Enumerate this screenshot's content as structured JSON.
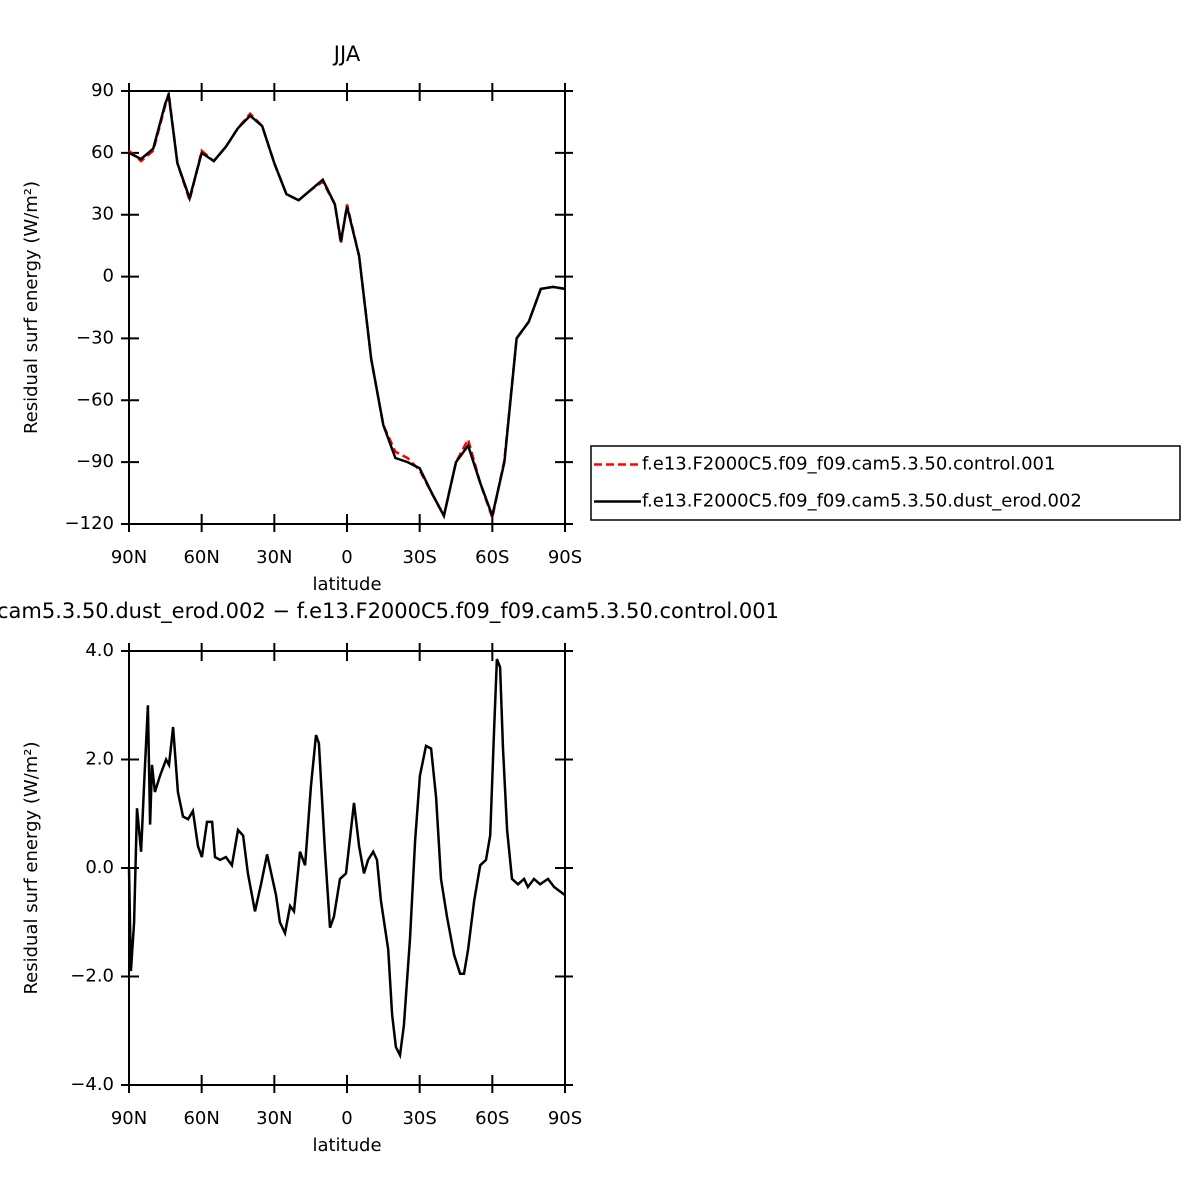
{
  "chart_data": [
    {
      "type": "line",
      "title": "JJA",
      "xlabel": "latitude",
      "ylabel": "Residual surf energy (W/m²)",
      "xlim": [
        90,
        -90
      ],
      "xticks": [
        {
          "value": 90,
          "label": "90N"
        },
        {
          "value": 60,
          "label": "60N"
        },
        {
          "value": 30,
          "label": "30N"
        },
        0,
        {
          "value": -30,
          "label": "30S"
        },
        {
          "value": -60,
          "label": "60S"
        },
        {
          "value": -90,
          "label": "90S"
        }
      ],
      "ylim": [
        -120,
        90
      ],
      "yticks": [
        {
          "value": -120,
          "label": "−120"
        },
        {
          "value": -90,
          "label": "−90"
        },
        {
          "value": -60,
          "label": "−60"
        },
        {
          "value": -30,
          "label": "−30"
        },
        0,
        30,
        60,
        90
      ],
      "legend": "right",
      "x": [
        90,
        85,
        80,
        75,
        73.6,
        70,
        65,
        60,
        55,
        50,
        45,
        40,
        35,
        30,
        25,
        20,
        15,
        10,
        5,
        2.5,
        0,
        -5,
        -10,
        -15,
        -20,
        -25,
        -30,
        -35,
        -40,
        -45,
        -50,
        -55,
        -60,
        -65,
        -70,
        -75,
        -80,
        -85,
        -90
      ],
      "series": [
        {
          "name": "f.e13.F2000C5.f09_f09.cam5.3.50.control.001",
          "color": "#ff0000",
          "dash": true,
          "values": [
            61,
            56,
            61,
            83,
            89,
            55,
            37,
            61,
            56,
            63,
            72,
            79,
            73,
            55,
            40,
            37,
            42,
            46,
            35,
            16,
            35,
            10,
            -40,
            -72,
            -85,
            -88,
            -94,
            -105,
            -116,
            -90,
            -79,
            -100,
            -117,
            -89,
            -30,
            -22,
            -6,
            -5,
            -6
          ]
        },
        {
          "name": "f.e13.F2000C5.f09_f09.cam5.3.50.dust_erod.002",
          "color": "#000000",
          "dash": false,
          "values": [
            60,
            57,
            62,
            84,
            88,
            55,
            38,
            60,
            56,
            63,
            72,
            78,
            73,
            55,
            40,
            37,
            42,
            47,
            35,
            17,
            34,
            10,
            -40,
            -72,
            -88,
            -90,
            -93,
            -105,
            -116,
            -90,
            -82,
            -100,
            -116,
            -90,
            -30,
            -22,
            -6,
            -5,
            -6
          ]
        }
      ]
    },
    {
      "type": "line",
      "title": "cam5.3.50.dust_erod.002 − f.e13.F2000C5.f09_f09.cam5.3.50.control.001",
      "xlabel": "latitude",
      "ylabel": "Residual surf energy (W/m²)",
      "xlim": [
        90,
        -90
      ],
      "xticks": [
        {
          "value": 90,
          "label": "90N"
        },
        {
          "value": 60,
          "label": "60N"
        },
        {
          "value": 30,
          "label": "30N"
        },
        0,
        {
          "value": -30,
          "label": "30S"
        },
        {
          "value": -60,
          "label": "60S"
        },
        {
          "value": -90,
          "label": "90S"
        }
      ],
      "ylim": [
        -4,
        4
      ],
      "yticks": [
        {
          "value": -4,
          "label": "−4.0"
        },
        {
          "value": -2,
          "label": "−2.0"
        },
        {
          "value": 0,
          "label": "0.0"
        },
        {
          "value": 2,
          "label": "2.0"
        },
        {
          "value": 4,
          "label": "4.0"
        }
      ],
      "x": [
        90,
        89.2,
        87.9,
        86.7,
        85,
        83.8,
        82.2,
        81.3,
        80.5,
        79.3,
        77.2,
        74.7,
        73.5,
        71.8,
        69.8,
        67.7,
        65.6,
        63.6,
        61.5,
        59.9,
        57.8,
        55.7,
        54.5,
        52.4,
        50,
        47.5,
        45,
        42.9,
        40.9,
        38,
        35.5,
        33,
        29.3,
        27.7,
        25.6,
        23.5,
        21.9,
        19.4,
        17.3,
        14.9,
        12.8,
        11.6,
        9.1,
        7,
        5.4,
        2.9,
        0.4,
        -2.9,
        -5,
        -7,
        -8.7,
        -10.8,
        -12.4,
        -14,
        -17,
        -18.6,
        -20.2,
        -21.9,
        -23.5,
        -26,
        -28.1,
        -30.1,
        -32.6,
        -34.7,
        -36.8,
        -38.8,
        -41.3,
        -44.2,
        -46.7,
        -48.3,
        -50,
        -52.5,
        -55,
        -57.4,
        -59.1,
        -60.7,
        -61.9,
        -63.2,
        -64.4,
        -66.1,
        -68.1,
        -70.6,
        -73.1,
        -74.7,
        -77.2,
        -79.7,
        -83,
        -85.5,
        -90
      ],
      "color": "#000000",
      "values": [
        0,
        -1.9,
        -1,
        1.1,
        0.3,
        1.5,
        3,
        0.8,
        1.9,
        1.4,
        1.7,
        2,
        1.9,
        2.6,
        1.4,
        0.95,
        0.9,
        1.05,
        0.4,
        0.2,
        0.85,
        0.85,
        0.2,
        0.15,
        0.2,
        0.05,
        0.7,
        0.6,
        -0.1,
        -0.8,
        -0.3,
        0.25,
        -0.5,
        -1,
        -1.2,
        -0.7,
        -0.8,
        0.3,
        0.05,
        1.5,
        2.45,
        2.3,
        0.3,
        -1.1,
        -0.9,
        -0.2,
        -0.1,
        1.2,
        0.4,
        -0.1,
        0.15,
        0.3,
        0.15,
        -0.6,
        -1.5,
        -2.7,
        -3.3,
        -3.45,
        -2.9,
        -1.3,
        0.5,
        1.7,
        2.25,
        2.2,
        1.3,
        -0.2,
        -0.9,
        -1.6,
        -1.95,
        -1.95,
        -1.5,
        -0.6,
        0.05,
        0.15,
        0.6,
        2.5,
        3.85,
        3.7,
        2.2,
        0.7,
        -0.2,
        -0.3,
        -0.2,
        -0.35,
        -0.2,
        -0.3,
        -0.2,
        -0.35,
        -0.5
      ]
    }
  ]
}
